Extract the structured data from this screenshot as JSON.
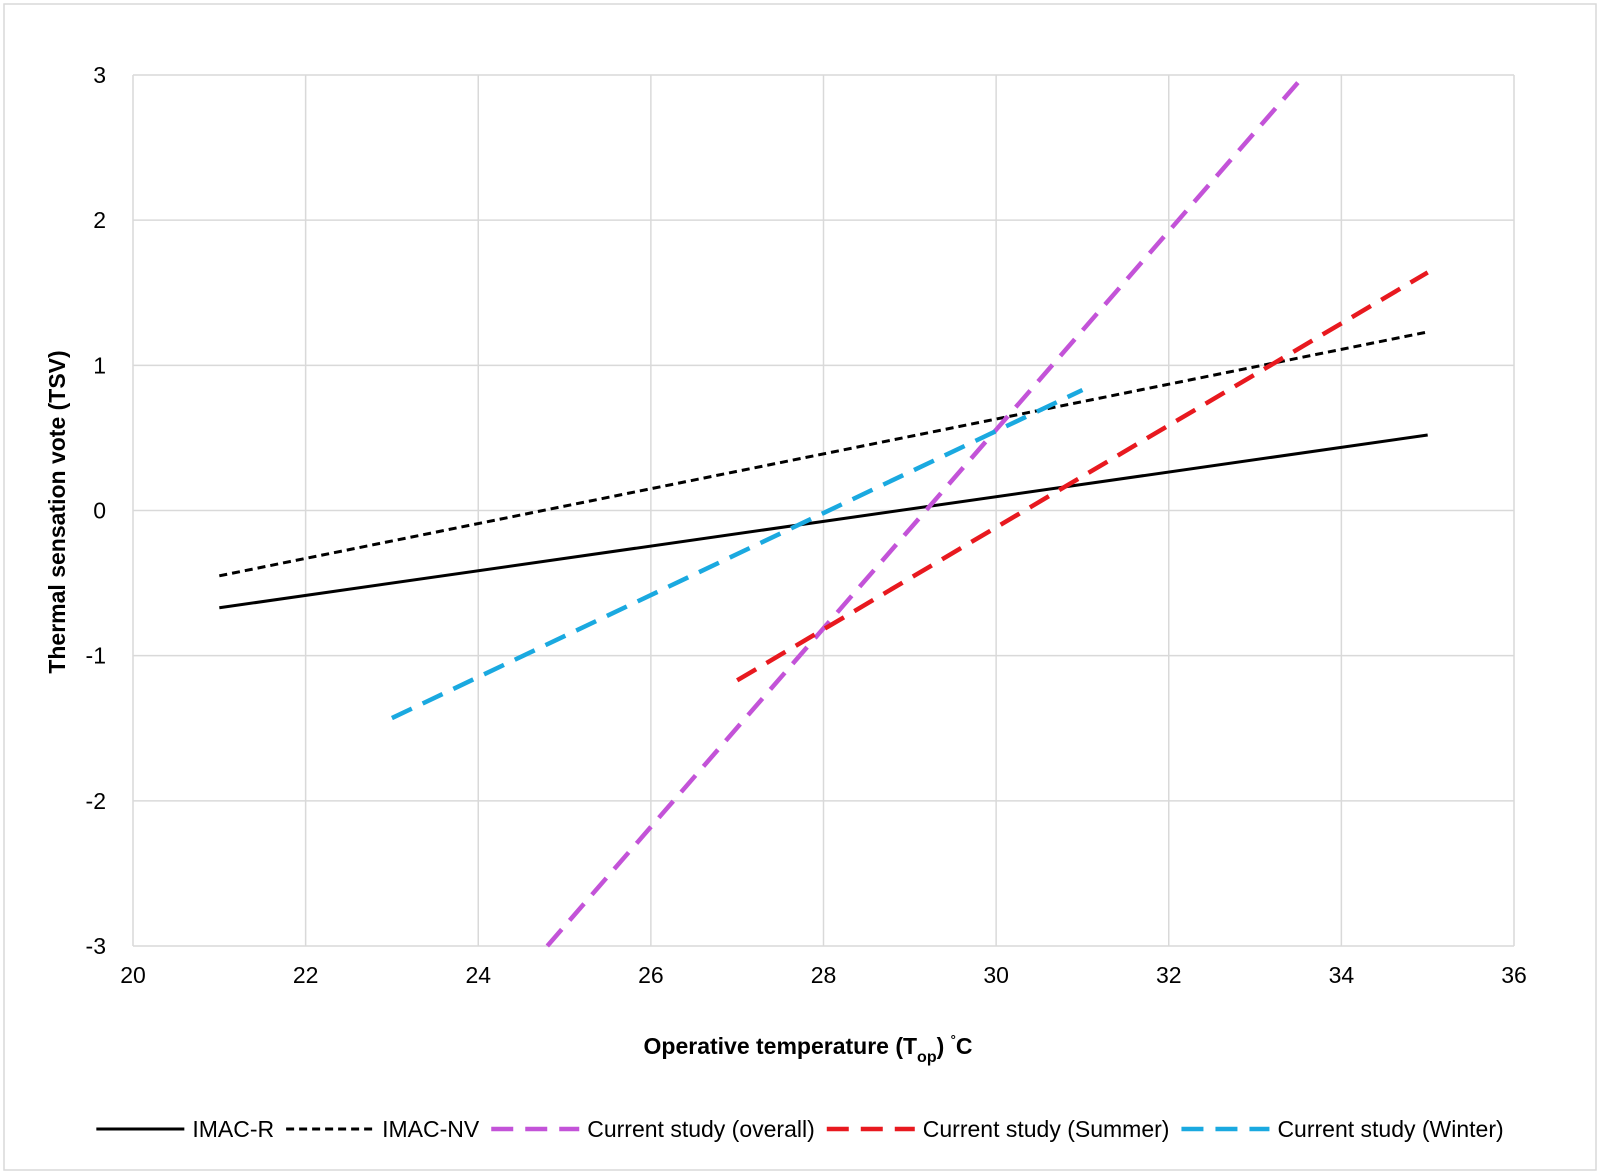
{
  "chart_data": {
    "type": "line",
    "xlabel_main": "Operative temperature (T",
    "xlabel_sub": "op",
    "xlabel_tail": ") ",
    "xlabel_unit_mark": "°",
    "xlabel_unit": "C",
    "ylabel": "Thermal sensation vote (TSV)",
    "xlim": [
      20,
      36
    ],
    "ylim": [
      -3,
      3
    ],
    "x_ticks": [
      "20",
      "22",
      "24",
      "26",
      "28",
      "30",
      "32",
      "34",
      "36"
    ],
    "y_ticks": [
      "-3",
      "-2",
      "-1",
      "0",
      "1",
      "2",
      "3"
    ],
    "grid": true,
    "legend_position": "bottom",
    "series": [
      {
        "name": "IMAC-R",
        "color": "#000000",
        "dash": "solid",
        "points": [
          [
            21,
            -0.67
          ],
          [
            35,
            0.52
          ]
        ]
      },
      {
        "name": "IMAC-NV",
        "color": "#000000",
        "dash": "short-dash",
        "points": [
          [
            21,
            -0.45
          ],
          [
            35,
            1.23
          ]
        ]
      },
      {
        "name": "Current study (overall)",
        "color": "#c353d8",
        "dash": "long-dash",
        "points": [
          [
            24.8,
            -3.0
          ],
          [
            33.5,
            2.95
          ]
        ]
      },
      {
        "name": "Current study (Summer)",
        "color": "#e8191f",
        "dash": "long-dash",
        "points": [
          [
            27,
            -1.17
          ],
          [
            35,
            1.64
          ]
        ]
      },
      {
        "name": "Current study (Winter)",
        "color": "#1aa9e0",
        "dash": "long-dash",
        "points": [
          [
            23,
            -1.43
          ],
          [
            31,
            0.83
          ]
        ]
      }
    ]
  }
}
